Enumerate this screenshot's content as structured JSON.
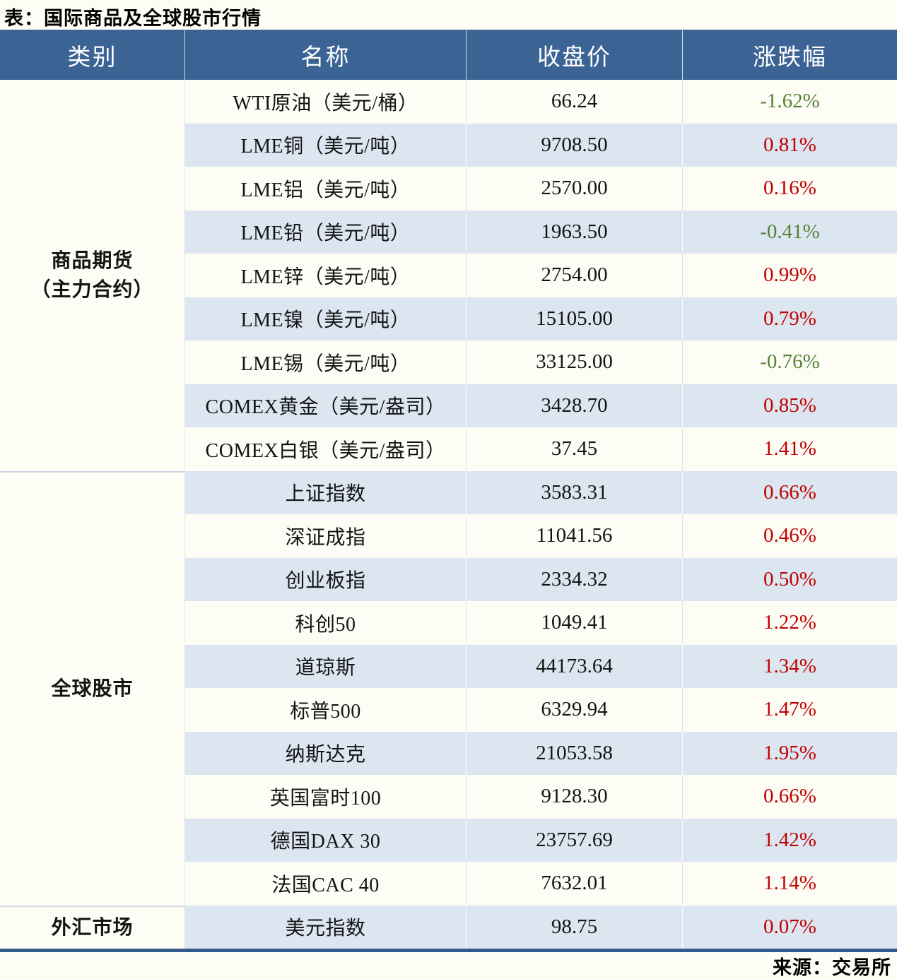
{
  "page": {
    "title": "表：国际商品及全球股市行情",
    "source": "来源：交易所"
  },
  "colors": {
    "header_bg": "#3b6394",
    "header_text": "#ffffff",
    "stripe_row": "#dce6f1",
    "plain_row": "#fdfdf6",
    "positive_change": "#c00000",
    "negative_change": "#548235",
    "bottom_border": "#315a8c",
    "section_divider": "#ccd6e2"
  },
  "table": {
    "headers": [
      "类别",
      "名称",
      "收盘价",
      "涨跌幅"
    ],
    "sections": [
      {
        "category_lines": [
          "商品期货",
          "（主力合约）"
        ],
        "rows": [
          {
            "name": "WTI原油（美元/桶）",
            "close": "66.24",
            "change": "-1.62%",
            "direction": "down"
          },
          {
            "name": "LME铜（美元/吨）",
            "close": "9708.50",
            "change": "0.81%",
            "direction": "up"
          },
          {
            "name": "LME铝（美元/吨）",
            "close": "2570.00",
            "change": "0.16%",
            "direction": "up"
          },
          {
            "name": "LME铅（美元/吨）",
            "close": "1963.50",
            "change": "-0.41%",
            "direction": "down"
          },
          {
            "name": "LME锌（美元/吨）",
            "close": "2754.00",
            "change": "0.99%",
            "direction": "up"
          },
          {
            "name": "LME镍（美元/吨）",
            "close": "15105.00",
            "change": "0.79%",
            "direction": "up"
          },
          {
            "name": "LME锡（美元/吨）",
            "close": "33125.00",
            "change": "-0.76%",
            "direction": "down"
          },
          {
            "name": "COMEX黄金（美元/盎司）",
            "close": "3428.70",
            "change": "0.85%",
            "direction": "up"
          },
          {
            "name": "COMEX白银（美元/盎司）",
            "close": "37.45",
            "change": "1.41%",
            "direction": "up"
          }
        ]
      },
      {
        "category_lines": [
          "全球股市"
        ],
        "rows": [
          {
            "name": "上证指数",
            "close": "3583.31",
            "change": "0.66%",
            "direction": "up"
          },
          {
            "name": "深证成指",
            "close": "11041.56",
            "change": "0.46%",
            "direction": "up"
          },
          {
            "name": "创业板指",
            "close": "2334.32",
            "change": "0.50%",
            "direction": "up"
          },
          {
            "name": "科创50",
            "close": "1049.41",
            "change": "1.22%",
            "direction": "up"
          },
          {
            "name": "道琼斯",
            "close": "44173.64",
            "change": "1.34%",
            "direction": "up"
          },
          {
            "name": "标普500",
            "close": "6329.94",
            "change": "1.47%",
            "direction": "up"
          },
          {
            "name": "纳斯达克",
            "close": "21053.58",
            "change": "1.95%",
            "direction": "up"
          },
          {
            "name": "英国富时100",
            "close": "9128.30",
            "change": "0.66%",
            "direction": "up"
          },
          {
            "name": "德国DAX 30",
            "close": "23757.69",
            "change": "1.42%",
            "direction": "up"
          },
          {
            "name": "法国CAC 40",
            "close": "7632.01",
            "change": "1.14%",
            "direction": "up"
          }
        ]
      },
      {
        "category_lines": [
          "外汇市场"
        ],
        "rows": [
          {
            "name": "美元指数",
            "close": "98.75",
            "change": "0.07%",
            "direction": "up"
          }
        ]
      }
    ]
  },
  "chart_data": {
    "type": "table",
    "title": "表：国际商品及全球股市行情",
    "columns": [
      "类别",
      "名称",
      "收盘价",
      "涨跌幅"
    ],
    "rows": [
      [
        "商品期货（主力合约）",
        "WTI原油（美元/桶）",
        66.24,
        -1.62
      ],
      [
        "商品期货（主力合约）",
        "LME铜（美元/吨）",
        9708.5,
        0.81
      ],
      [
        "商品期货（主力合约）",
        "LME铝（美元/吨）",
        2570.0,
        0.16
      ],
      [
        "商品期货（主力合约）",
        "LME铅（美元/吨）",
        1963.5,
        -0.41
      ],
      [
        "商品期货（主力合约）",
        "LME锌（美元/吨）",
        2754.0,
        0.99
      ],
      [
        "商品期货（主力合约）",
        "LME镍（美元/吨）",
        15105.0,
        0.79
      ],
      [
        "商品期货（主力合约）",
        "LME锡（美元/吨）",
        33125.0,
        -0.76
      ],
      [
        "商品期货（主力合约）",
        "COMEX黄金（美元/盎司）",
        3428.7,
        0.85
      ],
      [
        "商品期货（主力合约）",
        "COMEX白银（美元/盎司）",
        37.45,
        1.41
      ],
      [
        "全球股市",
        "上证指数",
        3583.31,
        0.66
      ],
      [
        "全球股市",
        "深证成指",
        11041.56,
        0.46
      ],
      [
        "全球股市",
        "创业板指",
        2334.32,
        0.5
      ],
      [
        "全球股市",
        "科创50",
        1049.41,
        1.22
      ],
      [
        "全球股市",
        "道琼斯",
        44173.64,
        1.34
      ],
      [
        "全球股市",
        "标普500",
        6329.94,
        1.47
      ],
      [
        "全球股市",
        "纳斯达克",
        21053.58,
        1.95
      ],
      [
        "全球股市",
        "英国富时100",
        9128.3,
        0.66
      ],
      [
        "全球股市",
        "德国DAX 30",
        23757.69,
        1.42
      ],
      [
        "全球股市",
        "法国CAC 40",
        7632.01,
        1.14
      ],
      [
        "外汇市场",
        "美元指数",
        98.75,
        0.07
      ]
    ],
    "source_note": "来源：交易所",
    "value_format": "涨跌幅 in percent; positive shown red, negative shown green"
  }
}
